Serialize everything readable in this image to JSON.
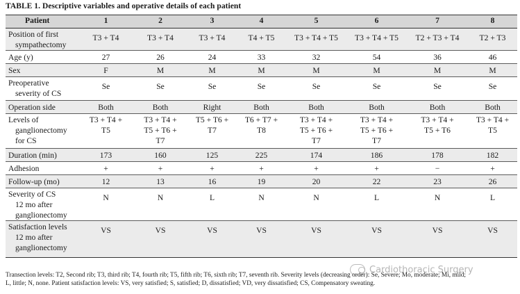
{
  "title": "TABLE 1.  Descriptive variables and operative details of each patient",
  "table": {
    "header": {
      "label": "Patient",
      "patients": [
        "1",
        "2",
        "3",
        "4",
        "5",
        "6",
        "7",
        "8"
      ]
    },
    "rows": [
      {
        "label": [
          "Position of first",
          "sympathectomy"
        ],
        "values": [
          [
            "T3 + T4"
          ],
          [
            "T3 + T4"
          ],
          [
            "T3 + T4"
          ],
          [
            "T4 + T5"
          ],
          [
            "T3 + T4 + T5"
          ],
          [
            "T3 + T4 + T5"
          ],
          [
            "T2 + T3 + T4"
          ],
          [
            "T2 + T3"
          ]
        ]
      },
      {
        "label": [
          "Age (y)"
        ],
        "values": [
          [
            "27"
          ],
          [
            "26"
          ],
          [
            "24"
          ],
          [
            "33"
          ],
          [
            "32"
          ],
          [
            "54"
          ],
          [
            "36"
          ],
          [
            "46"
          ]
        ]
      },
      {
        "label": [
          "Sex"
        ],
        "values": [
          [
            "F"
          ],
          [
            "M"
          ],
          [
            "M"
          ],
          [
            "M"
          ],
          [
            "M"
          ],
          [
            "M"
          ],
          [
            "M"
          ],
          [
            "M"
          ]
        ]
      },
      {
        "label": [
          "Preoperative",
          "severity of CS"
        ],
        "values": [
          [
            "Se"
          ],
          [
            "Se"
          ],
          [
            "Se"
          ],
          [
            "Se"
          ],
          [
            "Se"
          ],
          [
            "Se"
          ],
          [
            "Se"
          ],
          [
            "Se"
          ]
        ]
      },
      {
        "label": [
          "Operation side"
        ],
        "values": [
          [
            "Both"
          ],
          [
            "Both"
          ],
          [
            "Right"
          ],
          [
            "Both"
          ],
          [
            "Both"
          ],
          [
            "Both"
          ],
          [
            "Both"
          ],
          [
            "Both"
          ]
        ]
      },
      {
        "label": [
          "Levels of",
          "ganglionectomy",
          "for CS"
        ],
        "values": [
          [
            "T3 + T4 +",
            "T5"
          ],
          [
            "T3 + T4 +",
            "T5 + T6 +",
            "T7"
          ],
          [
            "T5 + T6 +",
            "T7"
          ],
          [
            "T6 + T7 +",
            "T8"
          ],
          [
            "T3 + T4 +",
            "T5 + T6 +",
            "T7"
          ],
          [
            "T3 + T4 +",
            "T5 + T6 +",
            "T7"
          ],
          [
            "T3 + T4 +",
            "T5 + T6"
          ],
          [
            "T3 + T4 +",
            "T5"
          ]
        ]
      },
      {
        "label": [
          "Duration (min)"
        ],
        "values": [
          [
            "173"
          ],
          [
            "160"
          ],
          [
            "125"
          ],
          [
            "225"
          ],
          [
            "174"
          ],
          [
            "186"
          ],
          [
            "178"
          ],
          [
            "182"
          ]
        ]
      },
      {
        "label": [
          "Adhesion"
        ],
        "values": [
          [
            "+"
          ],
          [
            "+"
          ],
          [
            "+"
          ],
          [
            "+"
          ],
          [
            "+"
          ],
          [
            "+"
          ],
          [
            "−"
          ],
          [
            "+"
          ]
        ]
      },
      {
        "label": [
          "Follow-up (mo)"
        ],
        "values": [
          [
            "12"
          ],
          [
            "13"
          ],
          [
            "16"
          ],
          [
            "19"
          ],
          [
            "20"
          ],
          [
            "22"
          ],
          [
            "23"
          ],
          [
            "26"
          ]
        ]
      },
      {
        "label": [
          "Severity of CS",
          "12 mo after",
          "ganglionectomy"
        ],
        "values": [
          [
            "N"
          ],
          [
            "N"
          ],
          [
            "L"
          ],
          [
            "N"
          ],
          [
            "N"
          ],
          [
            "L"
          ],
          [
            "N"
          ],
          [
            "L"
          ]
        ]
      },
      {
        "label": [
          "Satisfaction levels",
          "12 mo after",
          "ganglionectomy"
        ],
        "values": [
          [
            "VS"
          ],
          [
            "VS"
          ],
          [
            "VS"
          ],
          [
            "VS"
          ],
          [
            "VS"
          ],
          [
            "VS"
          ],
          [
            "VS"
          ],
          [
            "VS"
          ]
        ]
      }
    ]
  },
  "footnote": [
    "Transection levels: T2, Second rib; T3, third rib; T4, fourth rib; T5, fifth rib; T6, sixth rib; T7, seventh rib. Severity levels (decreasing order): Se, Severe; Mo, moderate; Mi, mild;",
    "L, little; N, none. Patient satisfaction levels: VS, very satisfied; S, satisfied; D, dissatisfied; VD, very dissatisfied; CS, Compensatory sweating."
  ],
  "watermark": {
    "text": "Cardiothoracic Surgery",
    "icon": "wechat-logo-icon"
  }
}
